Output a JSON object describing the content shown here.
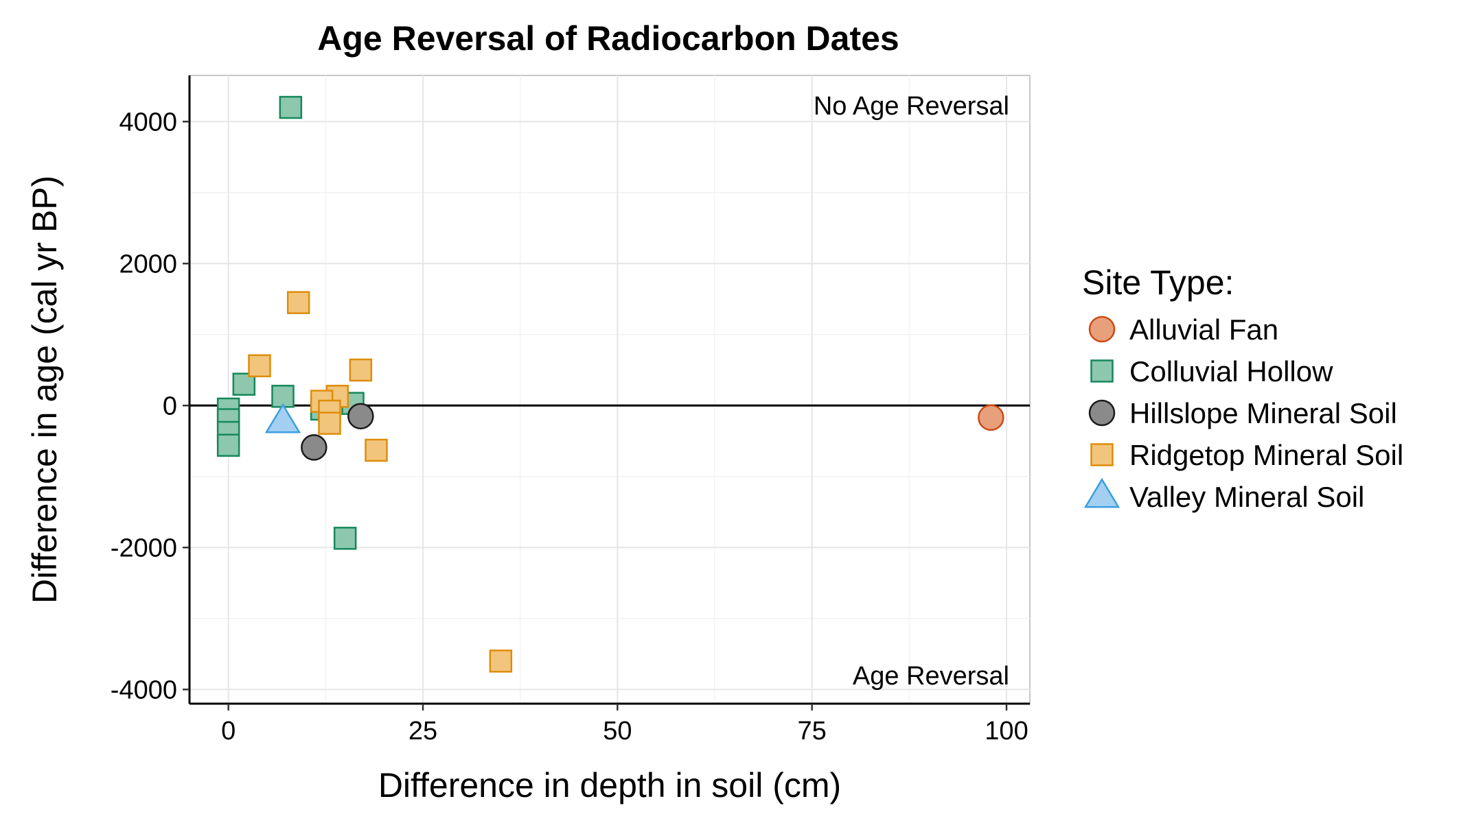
{
  "chart_data": {
    "type": "scatter",
    "title": "Age Reversal of Radiocarbon Dates",
    "xlabel": "Difference in depth in soil (cm)",
    "ylabel": "Difference in age (cal yr BP)",
    "xlim": [
      -5,
      103
    ],
    "ylim": [
      -4200,
      4650
    ],
    "x_ticks": [
      0,
      25,
      50,
      75,
      100
    ],
    "y_ticks": [
      -4000,
      -2000,
      0,
      2000,
      4000
    ],
    "grid": true,
    "reference_line": {
      "y": 0
    },
    "annotations": [
      {
        "text": "No Age Reversal",
        "position": "top-right"
      },
      {
        "text": "Age Reversal",
        "position": "bottom-right"
      }
    ],
    "legend": {
      "title": "Site Type:",
      "placement": "right"
    },
    "series": [
      {
        "name": "Alluvial Fan",
        "shape": "circle",
        "fill": "#e8a07c",
        "stroke": "#cc4a14",
        "points": [
          {
            "x": 98,
            "y": -170
          }
        ]
      },
      {
        "name": "Colluvial Hollow",
        "shape": "square",
        "fill": "#8dc7ae",
        "stroke": "#14885a",
        "points": [
          {
            "x": 8,
            "y": 4200
          },
          {
            "x": 2,
            "y": 300
          },
          {
            "x": 7,
            "y": 130
          },
          {
            "x": 0,
            "y": -50
          },
          {
            "x": 0,
            "y": -200
          },
          {
            "x": 0,
            "y": -380
          },
          {
            "x": 0,
            "y": -560
          },
          {
            "x": 12,
            "y": 20
          },
          {
            "x": 12,
            "y": -50
          },
          {
            "x": 16,
            "y": 30
          },
          {
            "x": 15,
            "y": -1870
          }
        ]
      },
      {
        "name": "Hillslope Mineral Soil",
        "shape": "circle",
        "fill": "#8a8a8a",
        "stroke": "#1a1a1a",
        "points": [
          {
            "x": 11,
            "y": -590
          },
          {
            "x": 17,
            "y": -150
          }
        ]
      },
      {
        "name": "Ridgetop Mineral Soil",
        "shape": "square",
        "fill": "#f2c57c",
        "stroke": "#de8c0a",
        "points": [
          {
            "x": 9,
            "y": 1450
          },
          {
            "x": 4,
            "y": 560
          },
          {
            "x": 17,
            "y": 500
          },
          {
            "x": 14,
            "y": 130
          },
          {
            "x": 12,
            "y": 60
          },
          {
            "x": 13,
            "y": -80
          },
          {
            "x": 13,
            "y": -250
          },
          {
            "x": 19,
            "y": -630
          },
          {
            "x": 35,
            "y": -3600
          }
        ]
      },
      {
        "name": "Valley Mineral Soil",
        "shape": "triangle",
        "fill": "#a3d0f0",
        "stroke": "#3a9ee0",
        "points": [
          {
            "x": 7,
            "y": -230
          }
        ]
      }
    ]
  }
}
